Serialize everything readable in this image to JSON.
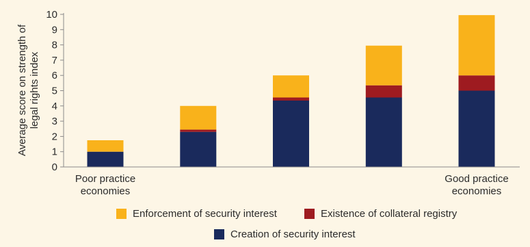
{
  "chart_data": {
    "type": "bar",
    "stacked": true,
    "ylabel": "Average score on strength of legal rights index",
    "ylim": [
      0,
      10
    ],
    "yticks": [
      0,
      1,
      2,
      3,
      4,
      5,
      6,
      7,
      8,
      9,
      10
    ],
    "grid": false,
    "legend_position": "bottom",
    "categories": [
      "Poor practice economies",
      "",
      "",
      "",
      "Good practice economies"
    ],
    "category_lines": [
      [
        "Poor practice",
        "economies"
      ],
      [],
      [],
      [],
      [
        "Good practice",
        "economies"
      ]
    ],
    "series": [
      {
        "name": "Creation of security interest",
        "color": "#1a2a5c",
        "values": [
          1.0,
          2.3,
          4.35,
          4.55,
          5.0
        ]
      },
      {
        "name": "Existence of collateral registry",
        "color": "#9e1b20",
        "values": [
          0.0,
          0.15,
          0.2,
          0.8,
          1.0
        ]
      },
      {
        "name": "Enforcement of security interest",
        "color": "#f9b21b",
        "values": [
          0.75,
          1.55,
          1.45,
          2.6,
          3.95
        ]
      }
    ],
    "legend_rows": [
      [
        2,
        1
      ],
      [
        0
      ]
    ]
  }
}
